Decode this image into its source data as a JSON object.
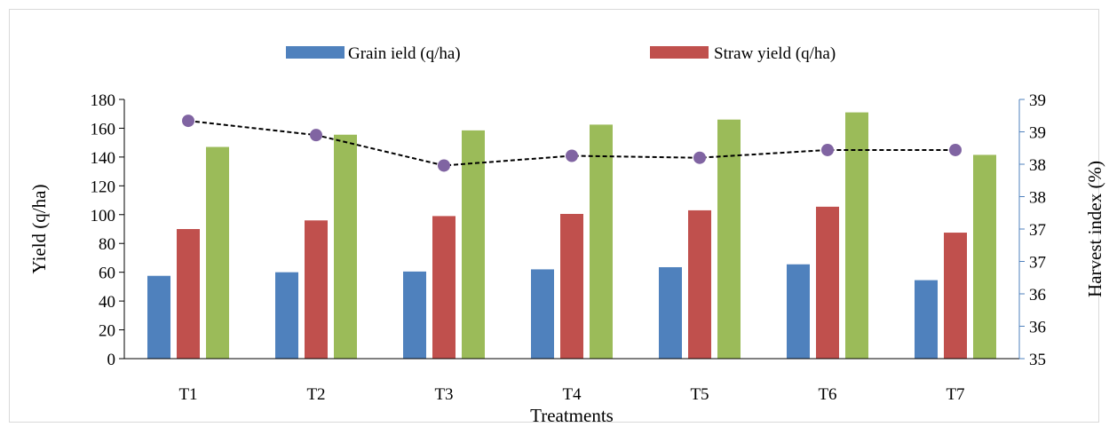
{
  "chart_data": {
    "type": "bar",
    "categories": [
      "T1",
      "T2",
      "T3",
      "T4",
      "T5",
      "T6",
      "T7"
    ],
    "series": [
      {
        "name": "Grain ield (q/ha)",
        "color": "#4f81bd",
        "axis": "left",
        "kind": "bar",
        "values": [
          57.5,
          60,
          60.5,
          62,
          63.5,
          65.5,
          54.5
        ]
      },
      {
        "name": "Straw yield (q/ha)",
        "color": "#c0504d",
        "axis": "left",
        "kind": "bar",
        "values": [
          90,
          96,
          99,
          100.5,
          103,
          105.5,
          87.5
        ]
      },
      {
        "name": "",
        "color": "#9bbb59",
        "axis": "left",
        "kind": "bar",
        "values": [
          147,
          155.5,
          158.5,
          162.5,
          166,
          171,
          141.5
        ]
      },
      {
        "name": "",
        "color": "#8064a2",
        "axis": "right",
        "kind": "line",
        "line_color": "#000000",
        "line_style": "dashed",
        "values": [
          38.67,
          38.45,
          37.98,
          38.13,
          38.1,
          38.22,
          38.22
        ]
      }
    ],
    "xlabel": "Treatments",
    "ylabel": "Yield (q/ha)",
    "y2label": "Harvest index (%)",
    "ylim": [
      0,
      180
    ],
    "y2lim": [
      35,
      39
    ],
    "yticks": [
      "0",
      "20",
      "40",
      "60",
      "80",
      "100",
      "120",
      "140",
      "160",
      "180"
    ],
    "y2ticks": [
      "35",
      "36",
      "36",
      "37",
      "37",
      "38",
      "38",
      "39",
      "39"
    ],
    "grid": false,
    "legend_position": "top"
  }
}
